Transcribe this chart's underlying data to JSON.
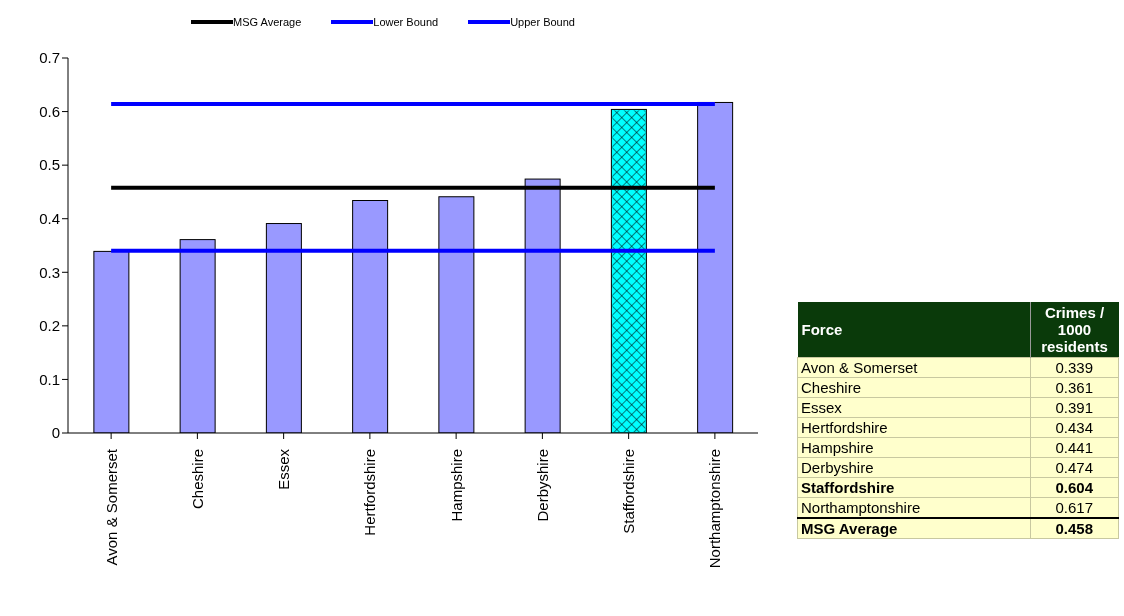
{
  "chart_data": {
    "type": "bar",
    "categories": [
      "Avon & Somerset",
      "Cheshire",
      "Essex",
      "Hertfordshire",
      "Hampshire",
      "Derbyshire",
      "Staffordshire",
      "Northamptonshire"
    ],
    "series": [
      {
        "values": [
          0.339,
          0.361,
          0.391,
          0.434,
          0.441,
          0.474,
          0.604,
          0.617
        ],
        "colors": [
          "#9999ff",
          "#9999ff",
          "#9999ff",
          "#9999ff",
          "#9999ff",
          "#9999ff",
          "#00ffff",
          "#9999ff"
        ]
      },
      {
        "type": "line",
        "name": "MSG Average",
        "color": "#000000",
        "values": [
          0.458,
          0.458,
          0.458,
          0.458,
          0.458,
          0.458,
          0.458,
          0.458
        ]
      },
      {
        "type": "line",
        "name": "Lower Bound",
        "color": "#0000ff",
        "values": [
          0.34,
          0.34,
          0.34,
          0.34,
          0.34,
          0.34,
          0.34,
          0.34
        ]
      },
      {
        "type": "line",
        "name": "Upper Bound",
        "color": "#0000ff",
        "values": [
          0.614,
          0.614,
          0.614,
          0.614,
          0.614,
          0.614,
          0.614,
          0.614
        ]
      }
    ],
    "annotations": [
      "Force",
      "Crimes / 1000 residents",
      "0.339",
      "0.361",
      "0.391",
      "0.434",
      "0.441",
      "0.474",
      "0.604",
      "0.617",
      "0.458"
    ],
    "ylim": [
      0,
      0.7
    ],
    "yticks": [
      0,
      0.1,
      0.2,
      0.3,
      0.4,
      0.5,
      0.6,
      0.7
    ],
    "grid": false,
    "legend": "top",
    "marker": "none",
    "line_style": "solid"
  }
}
